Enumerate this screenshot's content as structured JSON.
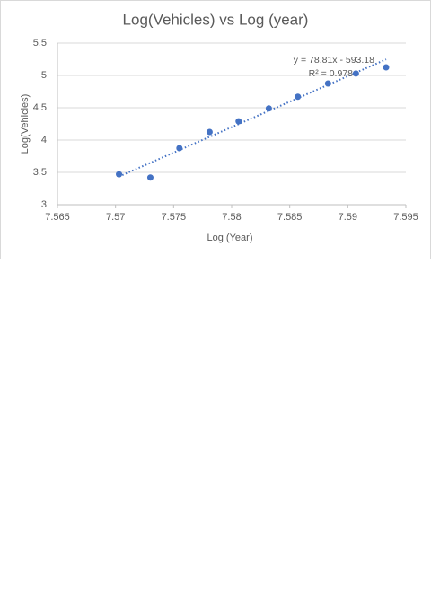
{
  "chart_data": {
    "type": "scatter",
    "title": "Log(Vehicles) vs Log (year)",
    "x_label": "Log (Year)",
    "y_label": "Log(Vehicles)",
    "series": [
      {
        "name": "Log(Vehicles)",
        "color": "#4472c4",
        "x": [
          7.5703,
          7.573,
          7.5755,
          7.5781,
          7.5806,
          7.5832,
          7.5857,
          7.5883,
          7.5907,
          7.5933
        ],
        "values": [
          3.47,
          3.42,
          3.875,
          4.125,
          4.29,
          4.49,
          4.67,
          4.875,
          5.03,
          5.125
        ]
      }
    ],
    "trendline": {
      "equation": "y = 78.81x - 593.18",
      "r2_label": "R² = 0.978",
      "slope": 78.81,
      "intercept": -593.18
    },
    "xlim": [
      7.565,
      7.595
    ],
    "xticks": [
      7.565,
      7.57,
      7.575,
      7.58,
      7.585,
      7.59,
      7.595
    ],
    "ylim": [
      3,
      5.5
    ],
    "yticks": [
      3,
      3.5,
      4,
      4.5,
      5,
      5.5
    ],
    "grid": true
  }
}
